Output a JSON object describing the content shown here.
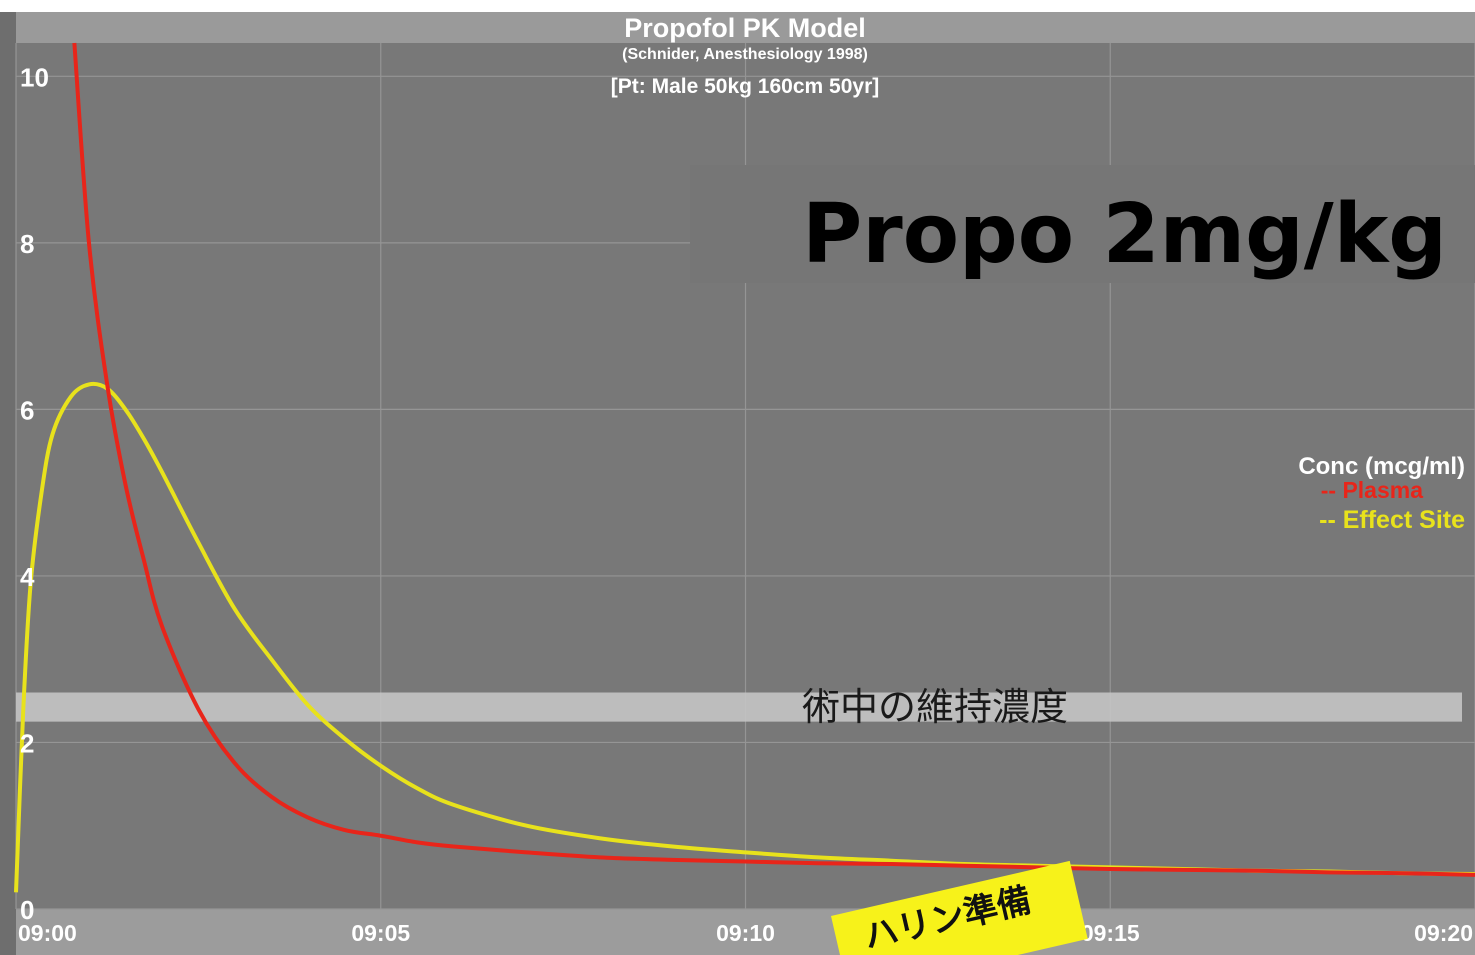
{
  "chart_data": {
    "type": "line",
    "title": "Propofol PK Model",
    "subtitle": "(Schnider, Anesthesiology 1998)",
    "patient": "[Pt: Male 50kg 160cm 50yr]",
    "xlabel": "",
    "ylabel": "",
    "x_ticks": [
      "09:00",
      "09:05",
      "09:10",
      "09:15",
      "09:20"
    ],
    "y_ticks": [
      "0",
      "2",
      "4",
      "6",
      "8",
      "10"
    ],
    "xlim": [
      0,
      20
    ],
    "ylim": [
      0,
      10.4
    ],
    "grid": true,
    "legend": {
      "title": "Conc (mcg/ml)",
      "placement": "right",
      "entries": [
        "-- Plasma",
        "-- Effect Site"
      ]
    },
    "series": [
      {
        "name": "Plasma",
        "color": "#e8251a",
        "x": [
          0.8,
          1.0,
          1.25,
          1.5,
          1.75,
          2.0,
          2.5,
          3.0,
          3.5,
          4.0,
          4.5,
          5.0,
          5.5,
          6.0,
          7.0,
          8.0,
          9.0,
          10.0,
          11.0,
          12.0,
          13.0,
          14.0,
          15.0,
          16.0,
          17.0,
          18.0,
          19.0,
          20.0
        ],
        "values": [
          10.4,
          8.0,
          6.3,
          5.1,
          4.2,
          3.4,
          2.4,
          1.75,
          1.35,
          1.1,
          0.95,
          0.88,
          0.8,
          0.75,
          0.68,
          0.62,
          0.59,
          0.57,
          0.55,
          0.54,
          0.52,
          0.5,
          0.48,
          0.47,
          0.46,
          0.44,
          0.43,
          0.41
        ]
      },
      {
        "name": "Effect Site",
        "color": "#e8e21c",
        "x": [
          0.0,
          0.1,
          0.2,
          0.35,
          0.5,
          0.75,
          1.0,
          1.25,
          1.5,
          1.75,
          2.0,
          2.5,
          3.0,
          3.5,
          4.0,
          4.5,
          5.0,
          5.5,
          6.0,
          7.0,
          8.0,
          9.0,
          10.0,
          11.0,
          12.0,
          13.0,
          14.0,
          15.0,
          16.0,
          17.0,
          18.0,
          19.0,
          20.0
        ],
        "values": [
          0.2,
          2.4,
          3.9,
          5.0,
          5.7,
          6.15,
          6.3,
          6.25,
          6.0,
          5.65,
          5.25,
          4.4,
          3.6,
          3.0,
          2.45,
          2.05,
          1.72,
          1.45,
          1.25,
          1.0,
          0.85,
          0.75,
          0.68,
          0.62,
          0.58,
          0.54,
          0.52,
          0.5,
          0.48,
          0.46,
          0.45,
          0.43,
          0.42
        ]
      }
    ],
    "annotations": {
      "headline": "Propo 2mg/kg",
      "band_label": "術中の維持濃度",
      "band_range": [
        2.25,
        2.6
      ],
      "sticky_note": "ハリン準備"
    },
    "colors": {
      "plot_bg": "#787878",
      "grid": "#959595",
      "plasma": "#e8251a",
      "effect_site": "#e8e21c",
      "sticky": "#f7f21a"
    }
  }
}
